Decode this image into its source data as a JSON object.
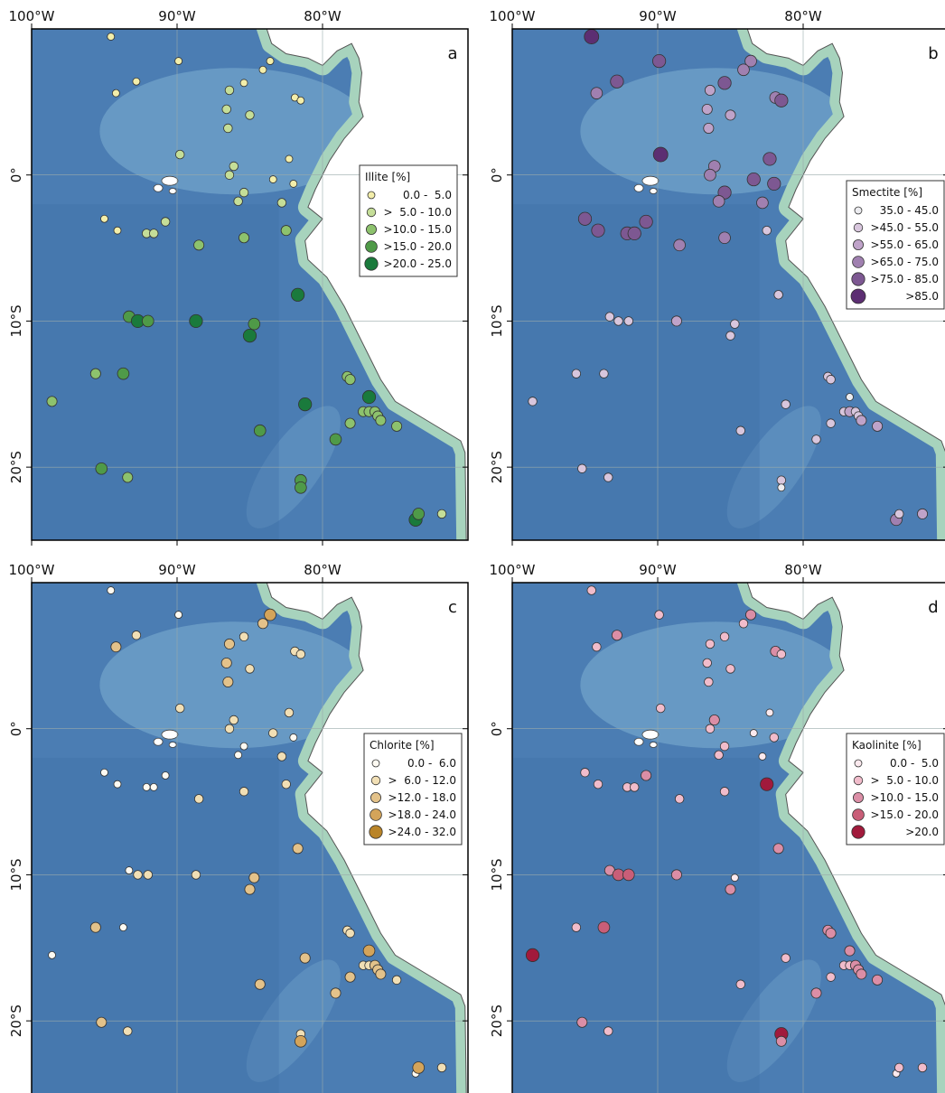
{
  "axes": {
    "xlim": [
      -100,
      -70
    ],
    "ylim": [
      -25,
      10
    ],
    "xticks": [
      {
        "value": -100,
        "label": "100°W"
      },
      {
        "value": -90,
        "label": "90°W"
      },
      {
        "value": -80,
        "label": "80°W"
      }
    ],
    "yticks": [
      {
        "value": 0,
        "label": "0°"
      },
      {
        "value": -10,
        "label": "10°S"
      },
      {
        "value": -20,
        "label": "20°S"
      }
    ]
  },
  "stations": {
    "lon": [
      -94.55,
      -89.9,
      -94.2,
      -92.8,
      -83.6,
      -84.1,
      -85.4,
      -86.4,
      -81.9,
      -81.5,
      -86.6,
      -85.0,
      -86.5,
      -89.8,
      -86.1,
      -82.3,
      -86.4,
      -83.4,
      -82.0,
      -85.4,
      -85.8,
      -82.8,
      -95.0,
      -94.1,
      -90.8,
      -92.1,
      -91.6,
      -82.5,
      -85.4,
      -88.5,
      -81.7,
      -93.3,
      -92.7,
      -92.0,
      -88.7,
      -84.7,
      -85.0,
      -95.6,
      -93.7,
      -78.3,
      -78.1,
      -98.6,
      -76.8,
      -81.2,
      -77.2,
      -76.8,
      -76.4,
      -76.2,
      -76.0,
      -74.9,
      -78.1,
      -84.3,
      -79.1,
      -95.2,
      -93.4,
      -81.5,
      -81.5,
      -73.6,
      -73.4,
      -71.8
    ],
    "lat": [
      9.47,
      7.8,
      5.6,
      6.4,
      7.8,
      7.2,
      6.3,
      5.8,
      5.3,
      5.1,
      4.5,
      4.1,
      3.2,
      1.4,
      0.6,
      1.1,
      0.0,
      -0.3,
      -0.6,
      -1.2,
      -1.8,
      -1.9,
      -3.0,
      -3.8,
      -3.2,
      -4.0,
      -4.0,
      -3.8,
      -4.3,
      -4.8,
      -8.2,
      -9.7,
      -10.0,
      -10.0,
      -10.0,
      -10.2,
      -11.0,
      -13.6,
      -13.6,
      -13.8,
      -14.0,
      -15.5,
      -15.2,
      -15.7,
      -16.2,
      -16.2,
      -16.2,
      -16.5,
      -16.8,
      -17.2,
      -17.0,
      -17.5,
      -18.1,
      -20.1,
      -20.7,
      -20.9,
      -21.4,
      -23.6,
      -23.2,
      -23.2
    ]
  },
  "panels": [
    {
      "letter": "a",
      "legend_title": "Illite [%]",
      "classes": [
        {
          "label": "0.0 -  5.0",
          "color": "#f3eeaa"
        },
        {
          "label": ">  5.0 - 10.0",
          "color": "#c5de98"
        },
        {
          "label": ">10.0 - 15.0",
          "color": "#8dc26d"
        },
        {
          "label": ">15.0 - 20.0",
          "color": "#4f9a48"
        },
        {
          "label": ">20.0 - 25.0",
          "color": "#1a7a3c"
        }
      ],
      "sample_class": [
        0,
        0,
        0,
        0,
        0,
        0,
        0,
        1,
        0,
        0,
        1,
        1,
        1,
        1,
        1,
        0,
        1,
        0,
        0,
        1,
        1,
        1,
        0,
        0,
        1,
        1,
        1,
        2,
        2,
        2,
        4,
        3,
        4,
        3,
        4,
        3,
        4,
        2,
        3,
        2,
        2,
        2,
        4,
        4,
        2,
        2,
        2,
        2,
        2,
        2,
        2,
        3,
        3,
        3,
        2,
        3,
        3,
        4,
        3,
        1
      ]
    },
    {
      "letter": "b",
      "legend_title": "Smectite [%]",
      "classes": [
        {
          "label": "35.0 - 45.0",
          "color": "#ececf0"
        },
        {
          "label": ">45.0 - 55.0",
          "color": "#d8c6dd"
        },
        {
          "label": ">55.0 - 65.0",
          "color": "#bfa3c9"
        },
        {
          "label": ">65.0 - 75.0",
          "color": "#a080b0"
        },
        {
          "label": ">75.0 - 85.0",
          "color": "#7d5892"
        },
        {
          "label": ">85.0",
          "color": "#5c2e72"
        }
      ],
      "sample_class": [
        5,
        4,
        3,
        4,
        3,
        3,
        4,
        2,
        3,
        4,
        2,
        2,
        2,
        5,
        3,
        4,
        3,
        4,
        4,
        4,
        3,
        3,
        4,
        4,
        4,
        4,
        4,
        1,
        3,
        3,
        1,
        1,
        1,
        1,
        2,
        1,
        1,
        1,
        1,
        1,
        1,
        1,
        0,
        1,
        1,
        2,
        1,
        1,
        2,
        2,
        1,
        1,
        1,
        1,
        1,
        1,
        0,
        3,
        1,
        2
      ]
    },
    {
      "letter": "c",
      "legend_title": "Chlorite [%]",
      "classes": [
        {
          "label": "0.0 -  6.0",
          "color": "#fdfaf2"
        },
        {
          "label": ">  6.0 - 12.0",
          "color": "#f1dfb5"
        },
        {
          "label": ">12.0 - 18.0",
          "color": "#e3c28a"
        },
        {
          "label": ">18.0 - 24.0",
          "color": "#d4a45a"
        },
        {
          "label": ">24.0 - 32.0",
          "color": "#b98428"
        }
      ],
      "sample_class": [
        0,
        0,
        2,
        1,
        3,
        2,
        1,
        2,
        1,
        1,
        2,
        1,
        2,
        1,
        1,
        1,
        1,
        1,
        0,
        0,
        0,
        1,
        0,
        0,
        0,
        0,
        0,
        1,
        1,
        1,
        2,
        0,
        1,
        1,
        1,
        2,
        2,
        2,
        0,
        1,
        1,
        0,
        3,
        2,
        1,
        1,
        2,
        2,
        2,
        1,
        2,
        2,
        2,
        2,
        1,
        1,
        3,
        0,
        3,
        1
      ]
    },
    {
      "letter": "d",
      "legend_title": "Kaolinite [%]",
      "classes": [
        {
          "label": "0.0 -  5.0",
          "color": "#fbe9ee"
        },
        {
          "label": ">  5.0 - 10.0",
          "color": "#f1bccb"
        },
        {
          "label": ">10.0 - 15.0",
          "color": "#db8ea6"
        },
        {
          "label": ">15.0 - 20.0",
          "color": "#c95e78"
        },
        {
          "label": ">20.0",
          "color": "#a11a3c"
        }
      ],
      "sample_class": [
        1,
        1,
        1,
        2,
        2,
        1,
        1,
        1,
        2,
        1,
        1,
        1,
        1,
        1,
        2,
        0,
        1,
        0,
        1,
        1,
        1,
        0,
        1,
        1,
        2,
        1,
        1,
        4,
        1,
        1,
        2,
        2,
        3,
        3,
        2,
        0,
        2,
        1,
        3,
        2,
        2,
        4,
        2,
        1,
        1,
        1,
        2,
        2,
        2,
        2,
        1,
        1,
        2,
        2,
        1,
        4,
        2,
        0,
        1,
        1
      ]
    }
  ]
}
